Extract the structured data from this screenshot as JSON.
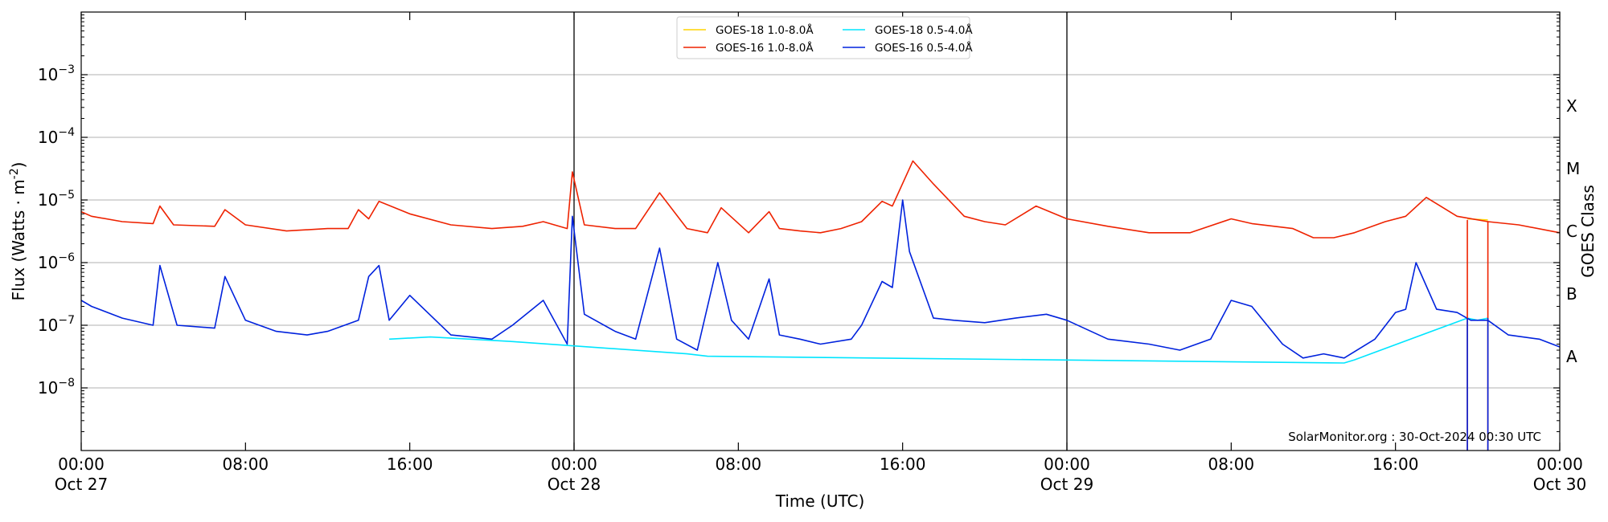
{
  "chart_data": {
    "type": "line",
    "y_scale": "log",
    "ylim": [
      1e-09,
      0.01
    ],
    "xlim": [
      "2024-10-27 00:00",
      "2024-10-30 00:00"
    ],
    "xlabel": "Time (UTC)",
    "ylabel": "Flux (Watts · m",
    "ylabel_exp": "-2",
    "ylabel_close": ")",
    "right_label": "GOES Class",
    "grid": "horizontal",
    "legend_position": "top-center",
    "credit": "SolarMonitor.org : 30-Oct-2024 00:30 UTC",
    "x_ticks": [
      {
        "t": "2024-10-27 00:00",
        "line1": "00:00",
        "line2": "Oct 27"
      },
      {
        "t": "2024-10-27 08:00",
        "line1": "08:00",
        "line2": ""
      },
      {
        "t": "2024-10-27 16:00",
        "line1": "16:00",
        "line2": ""
      },
      {
        "t": "2024-10-28 00:00",
        "line1": "00:00",
        "line2": "Oct 28"
      },
      {
        "t": "2024-10-28 08:00",
        "line1": "08:00",
        "line2": ""
      },
      {
        "t": "2024-10-28 16:00",
        "line1": "16:00",
        "line2": ""
      },
      {
        "t": "2024-10-29 00:00",
        "line1": "00:00",
        "line2": "Oct 29"
      },
      {
        "t": "2024-10-29 08:00",
        "line1": "08:00",
        "line2": ""
      },
      {
        "t": "2024-10-29 16:00",
        "line1": "16:00",
        "line2": ""
      },
      {
        "t": "2024-10-30 00:00",
        "line1": "00:00",
        "line2": "Oct 30"
      }
    ],
    "day_lines": [
      "2024-10-28 00:00",
      "2024-10-29 00:00"
    ],
    "y_ticks": [
      {
        "value": 1e-08,
        "base": "10",
        "exp": "−8"
      },
      {
        "value": 1e-07,
        "base": "10",
        "exp": "−7"
      },
      {
        "value": 1e-06,
        "base": "10",
        "exp": "−6"
      },
      {
        "value": 1e-05,
        "base": "10",
        "exp": "−5"
      },
      {
        "value": 0.0001,
        "base": "10",
        "exp": "−4"
      },
      {
        "value": 0.001,
        "base": "10",
        "exp": "−3"
      }
    ],
    "goes_classes": [
      {
        "label": "A",
        "value": 3.16e-08
      },
      {
        "label": "B",
        "value": 3.16e-07
      },
      {
        "label": "C",
        "value": 3.16e-06
      },
      {
        "label": "M",
        "value": 3.16e-05
      },
      {
        "label": "X",
        "value": 0.000316
      }
    ],
    "series": [
      {
        "name": "GOES-18 1.0-8.0Å",
        "color": "#ffd400",
        "legend_col": 0,
        "legend_row": 0,
        "x": [
          "2024-10-29 19:30",
          "2024-10-29 20:30"
        ],
        "y": [
          5e-06,
          4.8e-06
        ]
      },
      {
        "name": "GOES-18 0.5-4.0Å",
        "color": "#00e5ff",
        "legend_col": 1,
        "legend_row": 0,
        "x": [
          "2024-10-27 15:00",
          "2024-10-27 17:00",
          "2024-10-27 21:00",
          "2024-10-28 05:30",
          "2024-10-28 06:30",
          "2024-10-29 13:30",
          "2024-10-29 14:00",
          "2024-10-29 19:30",
          "2024-10-29 20:00",
          "2024-10-29 20:30"
        ],
        "y": [
          6e-08,
          6.5e-08,
          5.5e-08,
          3.5e-08,
          3.2e-08,
          2.5e-08,
          2.8e-08,
          1.3e-07,
          1.2e-07,
          1.3e-07
        ]
      },
      {
        "name": "GOES-16 1.0-8.0Å",
        "color": "#ee2200",
        "legend_col": 0,
        "legend_row": 1,
        "x": [
          "2024-10-27 00:00",
          "2024-10-27 00:30",
          "2024-10-27 02:00",
          "2024-10-27 03:30",
          "2024-10-27 03:50",
          "2024-10-27 04:30",
          "2024-10-27 06:30",
          "2024-10-27 07:00",
          "2024-10-27 08:00",
          "2024-10-27 10:00",
          "2024-10-27 12:00",
          "2024-10-27 13:00",
          "2024-10-27 13:30",
          "2024-10-27 14:00",
          "2024-10-27 14:30",
          "2024-10-27 16:00",
          "2024-10-27 18:00",
          "2024-10-27 20:00",
          "2024-10-27 21:30",
          "2024-10-27 22:30",
          "2024-10-27 23:40",
          "2024-10-27 23:55",
          "2024-10-28 00:30",
          "2024-10-28 02:00",
          "2024-10-28 03:00",
          "2024-10-28 04:10",
          "2024-10-28 05:30",
          "2024-10-28 06:30",
          "2024-10-28 07:10",
          "2024-10-28 08:30",
          "2024-10-28 09:30",
          "2024-10-28 10:00",
          "2024-10-28 11:00",
          "2024-10-28 12:00",
          "2024-10-28 13:00",
          "2024-10-28 14:00",
          "2024-10-28 15:00",
          "2024-10-28 15:30",
          "2024-10-28 16:30",
          "2024-10-28 17:30",
          "2024-10-28 19:00",
          "2024-10-28 20:00",
          "2024-10-28 21:00",
          "2024-10-28 22:30",
          "2024-10-29 00:00",
          "2024-10-29 02:00",
          "2024-10-29 04:00",
          "2024-10-29 06:00",
          "2024-10-29 08:00",
          "2024-10-29 09:00",
          "2024-10-29 11:00",
          "2024-10-29 12:00",
          "2024-10-29 13:00",
          "2024-10-29 14:00",
          "2024-10-29 15:30",
          "2024-10-29 16:30",
          "2024-10-29 17:30",
          "2024-10-29 19:00",
          "2024-10-29 20:30",
          "2024-10-29 22:00",
          "2024-10-30 00:00"
        ],
        "y": [
          6.5e-06,
          5.5e-06,
          4.5e-06,
          4.2e-06,
          8e-06,
          4e-06,
          3.8e-06,
          7e-06,
          4e-06,
          3.2e-06,
          3.5e-06,
          3.5e-06,
          7e-06,
          5e-06,
          9.5e-06,
          6e-06,
          4e-06,
          3.5e-06,
          3.8e-06,
          4.5e-06,
          3.5e-06,
          2.8e-05,
          4e-06,
          3.5e-06,
          3.5e-06,
          1.3e-05,
          3.5e-06,
          3e-06,
          7.5e-06,
          3e-06,
          6.5e-06,
          3.5e-06,
          3.2e-06,
          3e-06,
          3.5e-06,
          4.5e-06,
          9.5e-06,
          8e-06,
          4.2e-05,
          1.8e-05,
          5.5e-06,
          4.5e-06,
          4e-06,
          8e-06,
          5e-06,
          3.8e-06,
          3e-06,
          3e-06,
          5e-06,
          4.2e-06,
          3.5e-06,
          2.5e-06,
          2.5e-06,
          3e-06,
          4.5e-06,
          5.5e-06,
          1.1e-05,
          5.5e-06,
          4.5e-06,
          4e-06,
          3e-06
        ]
      },
      {
        "name": "GOES-16 0.5-4.0Å",
        "color": "#0022dd",
        "legend_col": 1,
        "legend_row": 1,
        "x": [
          "2024-10-27 00:00",
          "2024-10-27 00:30",
          "2024-10-27 02:00",
          "2024-10-27 03:30",
          "2024-10-27 03:50",
          "2024-10-27 04:40",
          "2024-10-27 06:30",
          "2024-10-27 07:00",
          "2024-10-27 08:00",
          "2024-10-27 09:30",
          "2024-10-27 11:00",
          "2024-10-27 12:00",
          "2024-10-27 13:30",
          "2024-10-27 14:00",
          "2024-10-27 14:30",
          "2024-10-27 15:00",
          "2024-10-27 16:00",
          "2024-10-27 18:00",
          "2024-10-27 20:00",
          "2024-10-27 21:00",
          "2024-10-27 22:30",
          "2024-10-27 23:40",
          "2024-10-27 23:55",
          "2024-10-28 00:30",
          "2024-10-28 02:00",
          "2024-10-28 03:00",
          "2024-10-28 04:10",
          "2024-10-28 05:00",
          "2024-10-28 06:00",
          "2024-10-28 07:00",
          "2024-10-28 07:40",
          "2024-10-28 08:30",
          "2024-10-28 09:30",
          "2024-10-28 10:00",
          "2024-10-28 11:00",
          "2024-10-28 12:00",
          "2024-10-28 13:30",
          "2024-10-28 14:00",
          "2024-10-28 15:00",
          "2024-10-28 15:30",
          "2024-10-28 16:00",
          "2024-10-28 16:20",
          "2024-10-28 17:30",
          "2024-10-28 18:30",
          "2024-10-28 20:00",
          "2024-10-28 21:30",
          "2024-10-28 23:00",
          "2024-10-29 00:00",
          "2024-10-29 02:00",
          "2024-10-29 04:00",
          "2024-10-29 05:30",
          "2024-10-29 07:00",
          "2024-10-29 08:00",
          "2024-10-29 09:00",
          "2024-10-29 10:30",
          "2024-10-29 11:30",
          "2024-10-29 12:30",
          "2024-10-29 13:30",
          "2024-10-29 15:00",
          "2024-10-29 16:00",
          "2024-10-29 16:30",
          "2024-10-29 17:00",
          "2024-10-29 18:00",
          "2024-10-29 19:00",
          "2024-10-29 19:40",
          "2024-10-29 20:30",
          "2024-10-29 21:30",
          "2024-10-29 23:00",
          "2024-10-30 00:00"
        ],
        "y": [
          2.5e-07,
          2e-07,
          1.3e-07,
          1e-07,
          9e-07,
          1e-07,
          9e-08,
          6e-07,
          1.2e-07,
          8e-08,
          7e-08,
          8e-08,
          1.2e-07,
          6e-07,
          9e-07,
          1.2e-07,
          3e-07,
          7e-08,
          6e-08,
          1e-07,
          2.5e-07,
          5e-08,
          5.5e-06,
          1.5e-07,
          8e-08,
          6e-08,
          1.7e-06,
          6e-08,
          4e-08,
          1e-06,
          1.2e-07,
          6e-08,
          5.5e-07,
          7e-08,
          6e-08,
          5e-08,
          6e-08,
          1e-07,
          5e-07,
          4e-07,
          1e-05,
          1.5e-06,
          1.3e-07,
          1.2e-07,
          1.1e-07,
          1.3e-07,
          1.5e-07,
          1.2e-07,
          6e-08,
          5e-08,
          4e-08,
          6e-08,
          2.5e-07,
          2e-07,
          5e-08,
          3e-08,
          3.5e-08,
          3e-08,
          6e-08,
          1.6e-07,
          1.8e-07,
          1e-06,
          1.8e-07,
          1.6e-07,
          1.2e-07,
          1.2e-07,
          7e-08,
          6e-08,
          4.5e-08
        ]
      }
    ],
    "data_gaps": [
      {
        "x": "2024-10-29 19:30",
        "from": 4.8e-06,
        "series_high": "GOES-16 1.0-8.0Å",
        "series_low": "GOES-16 0.5-4.0Å",
        "low_from": 1.3e-07
      },
      {
        "x": "2024-10-29 20:30",
        "from": 4.6e-06,
        "series_high": "GOES-16 1.0-8.0Å",
        "series_low": "GOES-16 0.5-4.0Å",
        "low_from": 1.3e-07
      }
    ]
  }
}
